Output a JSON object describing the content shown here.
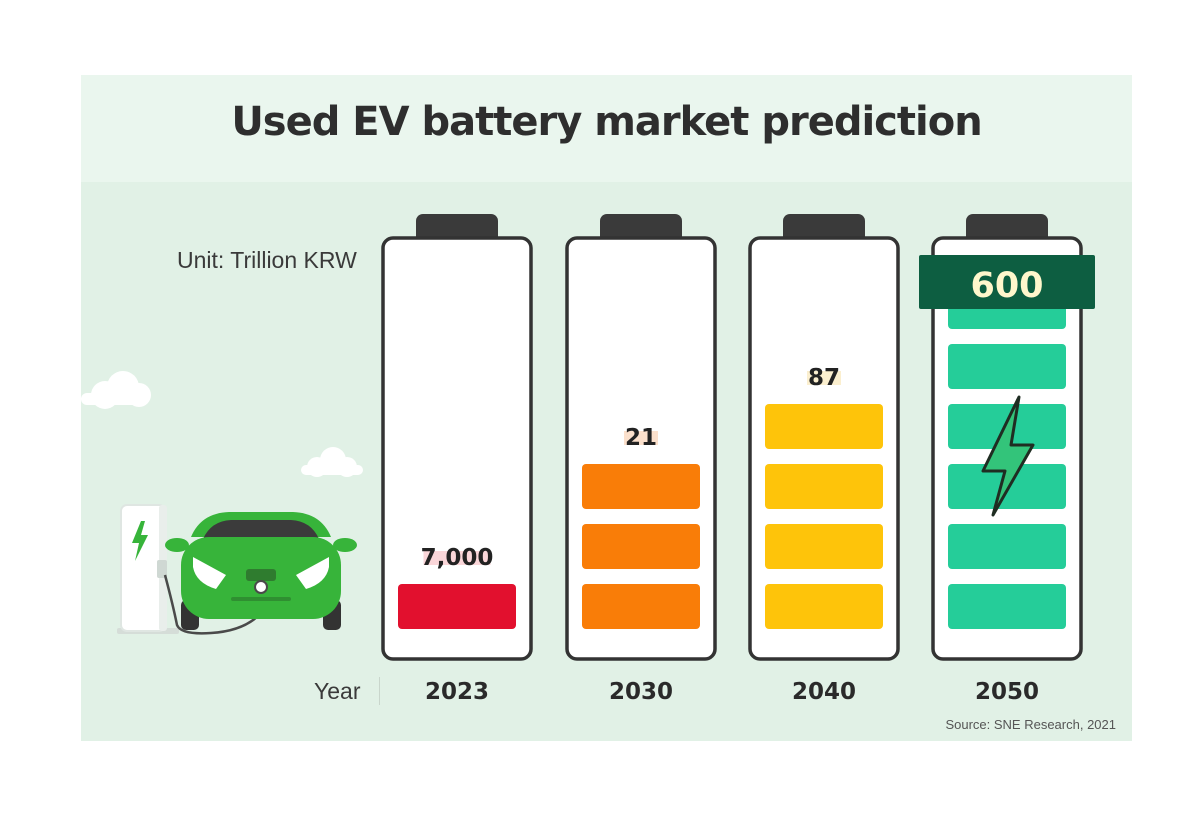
{
  "title": "Used EV battery market prediction",
  "unit_label": "Unit: Trillion KRW",
  "year_axis_label": "Year",
  "source": "Source: SNE Research, 2021",
  "chart_data": {
    "type": "bar",
    "title": "Used EV battery market prediction",
    "unit": "Trillion KRW",
    "xlabel": "Year",
    "categories": [
      "2023",
      "2030",
      "2040",
      "2050"
    ],
    "values": [
      7000,
      21,
      87,
      600
    ],
    "value_labels": [
      "7,000",
      "21",
      "87",
      "600"
    ],
    "filled_segments": [
      1,
      3,
      4,
      6
    ],
    "total_segments": 6,
    "colors": [
      "#e2102e",
      "#f97d08",
      "#fec40a",
      "#25cd99"
    ],
    "label_highlights": [
      "#fad6d9",
      "#fbe0cc",
      "#fbefcf",
      "#0d5e41"
    ],
    "legend": "none",
    "grid": false
  },
  "colors": {
    "background": "#e1f1e6",
    "title_band": "#eaf6ee",
    "outline": "#333333",
    "car_green": "#37b43a"
  }
}
